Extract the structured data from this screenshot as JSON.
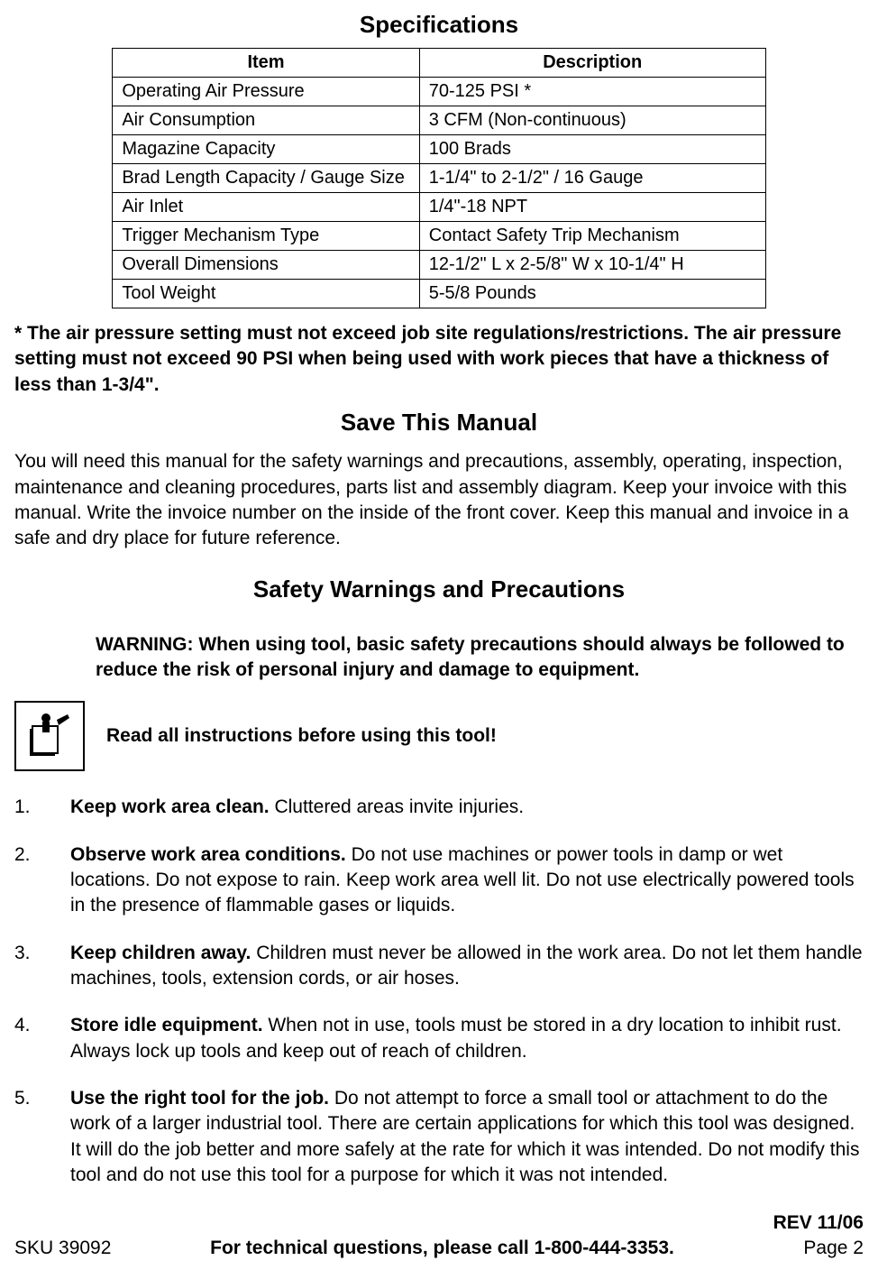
{
  "headings": {
    "specifications": "Specifications",
    "save_manual": "Save This Manual",
    "safety_warnings": "Safety Warnings and Precautions"
  },
  "spec_table": {
    "headers": {
      "item": "Item",
      "description": "Description"
    },
    "rows": [
      {
        "item": "Operating Air Pressure",
        "desc": "70-125 PSI *"
      },
      {
        "item": "Air Consumption",
        "desc": "3 CFM (Non-continuous)"
      },
      {
        "item": "Magazine Capacity",
        "desc": "100 Brads"
      },
      {
        "item": "Brad Length Capacity / Gauge Size",
        "desc": "1-1/4\" to 2-1/2\" / 16 Gauge"
      },
      {
        "item": "Air Inlet",
        "desc": "1/4\"-18 NPT"
      },
      {
        "item": "Trigger Mechanism Type",
        "desc": "Contact Safety Trip Mechanism"
      },
      {
        "item": "Overall Dimensions",
        "desc": "12-1/2\" L x 2-5/8\" W x 10-1/4\" H"
      },
      {
        "item": "Tool Weight",
        "desc": "5-5/8 Pounds"
      }
    ]
  },
  "pressure_note": "* The air pressure setting must not exceed job site regulations/restrictions.  The air pressure setting must not exceed 90 PSI when being used with work pieces that have a thickness of less than 1-3/4\".",
  "save_manual_text": "You will need this manual for the safety warnings and precautions, assembly, operating, inspection, maintenance and cleaning procedures, parts list and assembly diagram.  Keep your invoice with this manual.  Write the invoice number on the inside of the front cover.  Keep this manual and invoice in a safe and dry place for future reference.",
  "warning_text": "WARNING: When using tool, basic safety precautions should always be followed to reduce the risk of personal injury and damage to equipment.",
  "read_instructions": "Read all instructions before using this tool!",
  "safety_items": [
    {
      "num": "1.",
      "lead": "Keep work area clean.",
      "rest": "  Cluttered areas invite injuries."
    },
    {
      "num": "2.",
      "lead": "Observe work area conditions.",
      "rest": "  Do not use machines or power tools in damp or wet locations.  Do not expose to rain.  Keep work area well lit.  Do not use electrically powered tools in the presence of flammable gases or liquids."
    },
    {
      "num": "3.",
      "lead": "Keep children away.",
      "rest": "  Children must never be allowed in the work area.  Do not let them handle machines, tools, extension cords, or air hoses."
    },
    {
      "num": "4.",
      "lead": "Store idle equipment.",
      "rest": "  When not in use, tools must be stored in a dry location to inhibit rust.  Always lock up tools and keep out of reach of children."
    },
    {
      "num": "5.",
      "lead": "Use the right tool for the job.",
      "rest": "  Do not attempt to force a small tool or attachment to do the work of a larger industrial tool.  There are certain applications for which this tool was designed.  It will do the job better and more safely at the rate for which it was intended.  Do not modify this tool and do not use this tool for a purpose for which it was not intended."
    }
  ],
  "footer": {
    "sku": "SKU 39092",
    "call": "For technical questions, please call 1-800-444-3353.",
    "rev": "REV 11/06",
    "page": "Page 2"
  },
  "colors": {
    "text": "#000000",
    "background": "#ffffff",
    "border": "#000000"
  }
}
